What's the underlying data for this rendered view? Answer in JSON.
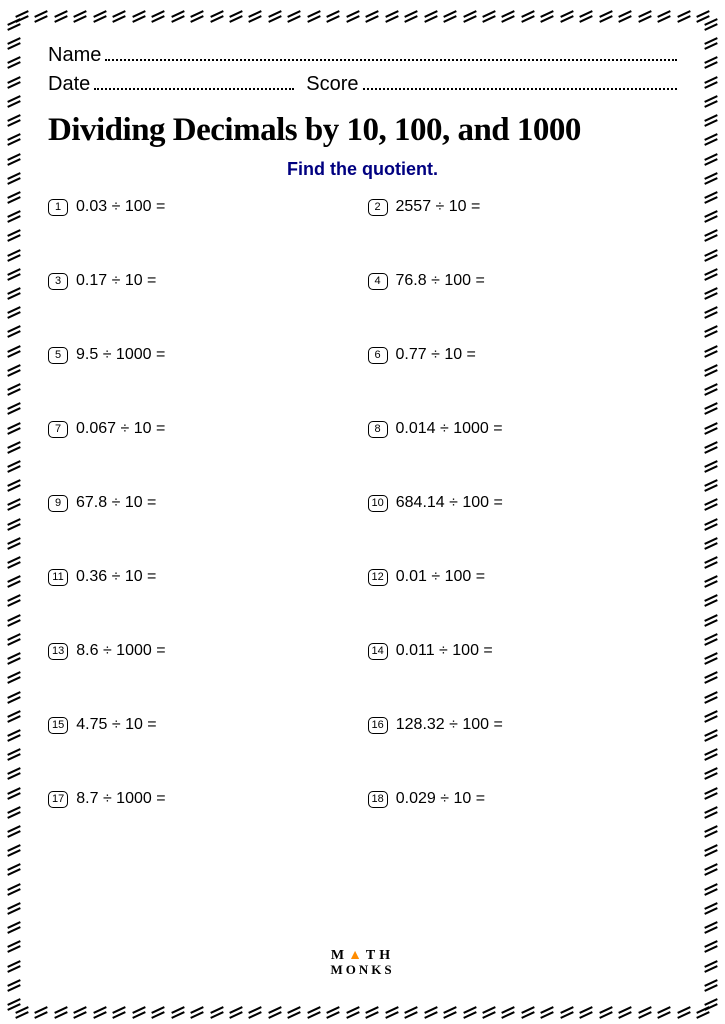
{
  "header": {
    "name_label": "Name",
    "date_label": "Date",
    "score_label": "Score"
  },
  "title": "Dividing Decimals by 10, 100, and 1000",
  "subtitle": "Find the quotient.",
  "problems": [
    {
      "n": "1",
      "text": "0.03 ÷ 100 ="
    },
    {
      "n": "2",
      "text": "2557 ÷ 10 ="
    },
    {
      "n": "3",
      "text": "0.17 ÷ 10 ="
    },
    {
      "n": "4",
      "text": "76.8 ÷ 100 ="
    },
    {
      "n": "5",
      "text": "9.5 ÷ 1000 ="
    },
    {
      "n": "6",
      "text": "0.77 ÷ 10 ="
    },
    {
      "n": "7",
      "text": "0.067 ÷ 10 ="
    },
    {
      "n": "8",
      "text": "0.014 ÷ 1000 ="
    },
    {
      "n": "9",
      "text": "67.8 ÷ 10 ="
    },
    {
      "n": "10",
      "text": "684.14 ÷ 100 ="
    },
    {
      "n": "11",
      "text": "0.36 ÷ 10 ="
    },
    {
      "n": "12",
      "text": "0.01 ÷ 100 ="
    },
    {
      "n": "13",
      "text": "8.6 ÷ 1000 ="
    },
    {
      "n": "14",
      "text": "0.011 ÷ 100 ="
    },
    {
      "n": "15",
      "text": "4.75 ÷ 10 ="
    },
    {
      "n": "16",
      "text": "128.32 ÷ 100 ="
    },
    {
      "n": "17",
      "text": "8.7 ÷ 1000 ="
    },
    {
      "n": "18",
      "text": "0.029 ÷ 10 ="
    }
  ],
  "logo": {
    "line1_a": "M",
    "line1_b": "TH",
    "line2": "MONKS"
  },
  "border": {
    "tick_spacing": 19,
    "inset": 14
  }
}
